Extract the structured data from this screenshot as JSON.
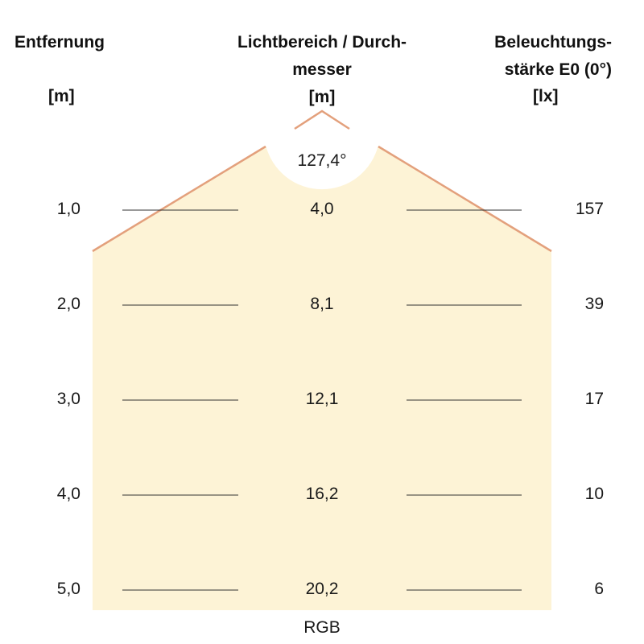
{
  "headers": {
    "distance": {
      "line1": "Entfernung",
      "unit": "[m]"
    },
    "diameter": {
      "line1": "Lichtbereich / Durch-",
      "line2": "messer",
      "unit": "[m]"
    },
    "illuminance": {
      "line1": "Beleuchtungs-",
      "line2": "stärke E0 (0°)",
      "unit": "[lx]"
    }
  },
  "beam_angle": "127,4°",
  "rows": [
    {
      "distance": "1,0",
      "diameter": "4,0",
      "illuminance": "157"
    },
    {
      "distance": "2,0",
      "diameter": "8,1",
      "illuminance": "39"
    },
    {
      "distance": "3,0",
      "diameter": "12,1",
      "illuminance": "17"
    },
    {
      "distance": "4,0",
      "diameter": "16,2",
      "illuminance": "10"
    },
    {
      "distance": "5,0",
      "diameter": "20,2",
      "illuminance": "6"
    }
  ],
  "footer_label": "RGB",
  "colors": {
    "cone_fill": "#fdf3d6",
    "cone_edge": "#e3a07c",
    "guide_line": "#333333"
  }
}
